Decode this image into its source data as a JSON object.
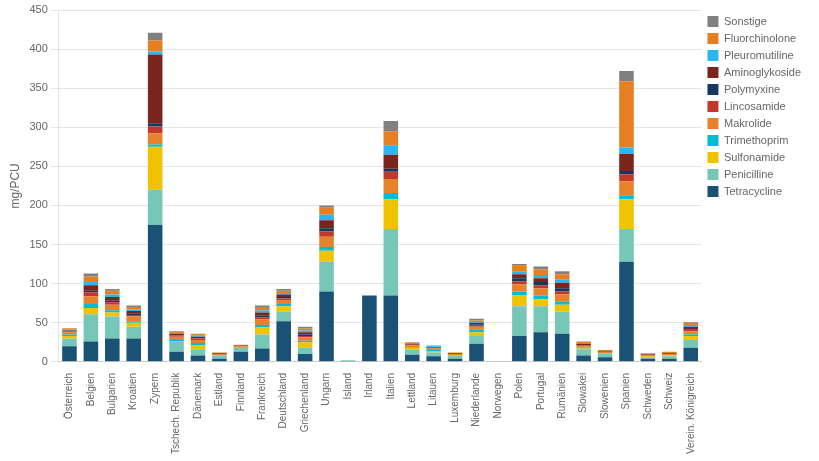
{
  "chart_data": {
    "type": "bar",
    "stacked": true,
    "categories": [
      "Österreich",
      "Belgien",
      "Bulgarien",
      "Kroatien",
      "Zypern",
      "Tschech. Republik",
      "Dänemark",
      "Estland",
      "Finnland",
      "Frankreich",
      "Deutschland",
      "Griechenland",
      "Ungarn",
      "Island",
      "Irland",
      "Italien",
      "Lettland",
      "Litauen",
      "Luxemburg",
      "Niederlande",
      "Norwegen",
      "Polen",
      "Portugal",
      "Rumänien",
      "Slowakei",
      "Slowenien",
      "Spanien",
      "Schweden",
      "Schweiz",
      "Verein. Königreich"
    ],
    "series": [
      {
        "name": "Tetracycline",
        "color": "#1a5276",
        "values": [
          20,
          26,
          30,
          30,
          175,
          13,
          8,
          4,
          13,
          17,
          52,
          10,
          90,
          1,
          85,
          85,
          9,
          7,
          4,
          23,
          0,
          33,
          38,
          36,
          8,
          6,
          128,
          4,
          4,
          18
        ]
      },
      {
        "name": "Penicilline",
        "color": "#76c7b7",
        "values": [
          10,
          35,
          28,
          15,
          45,
          13,
          8,
          4,
          5,
          18,
          12,
          8,
          38,
          1,
          0,
          85,
          7,
          5,
          4,
          10,
          0,
          38,
          33,
          28,
          7,
          5,
          42,
          2,
          3,
          10
        ]
      },
      {
        "name": "Sulfonamide",
        "color": "#f0c300",
        "values": [
          3,
          8,
          5,
          5,
          55,
          0,
          5,
          0,
          0,
          9,
          7,
          7,
          14,
          0,
          0,
          38,
          2,
          2,
          0,
          5,
          0,
          14,
          9,
          9,
          2,
          0,
          38,
          1,
          1,
          5
        ]
      },
      {
        "name": "Trimethoprim",
        "color": "#00bcd4",
        "values": [
          2,
          5,
          3,
          2,
          3,
          2,
          3,
          0,
          0,
          3,
          3,
          2,
          5,
          0,
          0,
          8,
          1,
          1,
          0,
          3,
          0,
          5,
          5,
          4,
          1,
          0,
          5,
          0,
          0,
          2
        ]
      },
      {
        "name": "Makrolide",
        "color": "#e8822a",
        "values": [
          3,
          10,
          7,
          6,
          14,
          4,
          4,
          2,
          2,
          7,
          5,
          4,
          13,
          0,
          0,
          18,
          2,
          2,
          2,
          4,
          0,
          9,
          9,
          9,
          2,
          2,
          18,
          2,
          2,
          4
        ]
      },
      {
        "name": "Lincosamide",
        "color": "#c0392b",
        "values": [
          1,
          5,
          3,
          2,
          9,
          2,
          2,
          0,
          0,
          3,
          2,
          2,
          7,
          0,
          0,
          9,
          1,
          1,
          0,
          2,
          0,
          4,
          4,
          4,
          1,
          0,
          9,
          0,
          0,
          2
        ]
      },
      {
        "name": "Polymyxine",
        "color": "#17375e",
        "values": [
          0,
          2,
          2,
          2,
          4,
          0,
          0,
          0,
          0,
          2,
          2,
          2,
          4,
          0,
          0,
          4,
          0,
          0,
          0,
          1,
          0,
          4,
          4,
          4,
          0,
          0,
          4,
          0,
          0,
          1
        ]
      },
      {
        "name": "Aminoglykoside",
        "color": "#7b241c",
        "values": [
          1,
          7,
          5,
          3,
          88,
          2,
          2,
          1,
          1,
          4,
          3,
          3,
          10,
          0,
          0,
          18,
          1,
          1,
          1,
          2,
          0,
          5,
          5,
          7,
          2,
          1,
          22,
          1,
          1,
          3
        ]
      },
      {
        "name": "Pleuromutiline",
        "color": "#29b6f6",
        "values": [
          1,
          4,
          3,
          2,
          4,
          1,
          2,
          0,
          0,
          3,
          2,
          2,
          7,
          0,
          0,
          12,
          1,
          1,
          0,
          1,
          0,
          4,
          4,
          4,
          1,
          0,
          8,
          0,
          0,
          2
        ]
      },
      {
        "name": "Fluorchinolone",
        "color": "#e67e22",
        "values": [
          2,
          7,
          5,
          3,
          14,
          2,
          2,
          1,
          1,
          4,
          3,
          3,
          9,
          0,
          0,
          18,
          1,
          1,
          1,
          2,
          0,
          7,
          7,
          7,
          2,
          1,
          85,
          1,
          2,
          3
        ]
      },
      {
        "name": "Sonstige",
        "color": "#808080",
        "values": [
          0,
          4,
          2,
          2,
          10,
          0,
          0,
          0,
          0,
          2,
          2,
          2,
          3,
          0,
          0,
          13,
          0,
          0,
          0,
          2,
          0,
          2,
          4,
          4,
          0,
          0,
          13,
          0,
          0,
          1
        ]
      }
    ],
    "ylabel": "mg/PCU",
    "ylim": [
      0,
      450
    ],
    "yticks": [
      0,
      50,
      100,
      150,
      200,
      250,
      300,
      350,
      400,
      450
    ],
    "grid": true,
    "legend": "right"
  }
}
